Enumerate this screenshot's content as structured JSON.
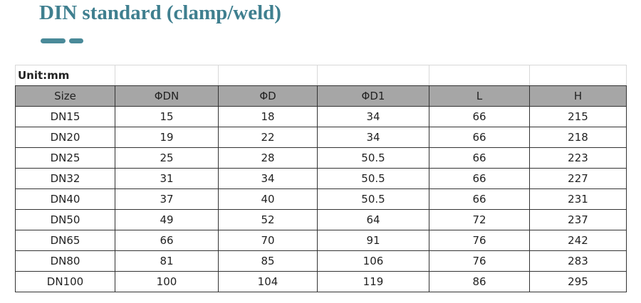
{
  "header": {
    "title": "DIN standard (clamp/weld)"
  },
  "table": {
    "unit": "Unit:mm",
    "columns": [
      "Size",
      "ΦDN",
      "ΦD",
      "ΦD1",
      "L",
      "H"
    ],
    "rows": [
      [
        "DN15",
        15,
        18,
        34,
        66,
        215
      ],
      [
        "DN20",
        19,
        22,
        34,
        66,
        218
      ],
      [
        "DN25",
        25,
        28,
        50.5,
        66,
        223
      ],
      [
        "DN32",
        31,
        34,
        50.5,
        66,
        227
      ],
      [
        "DN40",
        37,
        40,
        50.5,
        66,
        231
      ],
      [
        "DN50",
        49,
        52,
        64,
        72,
        237
      ],
      [
        "DN65",
        66,
        70,
        91,
        76,
        242
      ],
      [
        "DN80",
        81,
        85,
        106,
        76,
        283
      ],
      [
        "DN100",
        100,
        104,
        119,
        86,
        295
      ]
    ]
  }
}
